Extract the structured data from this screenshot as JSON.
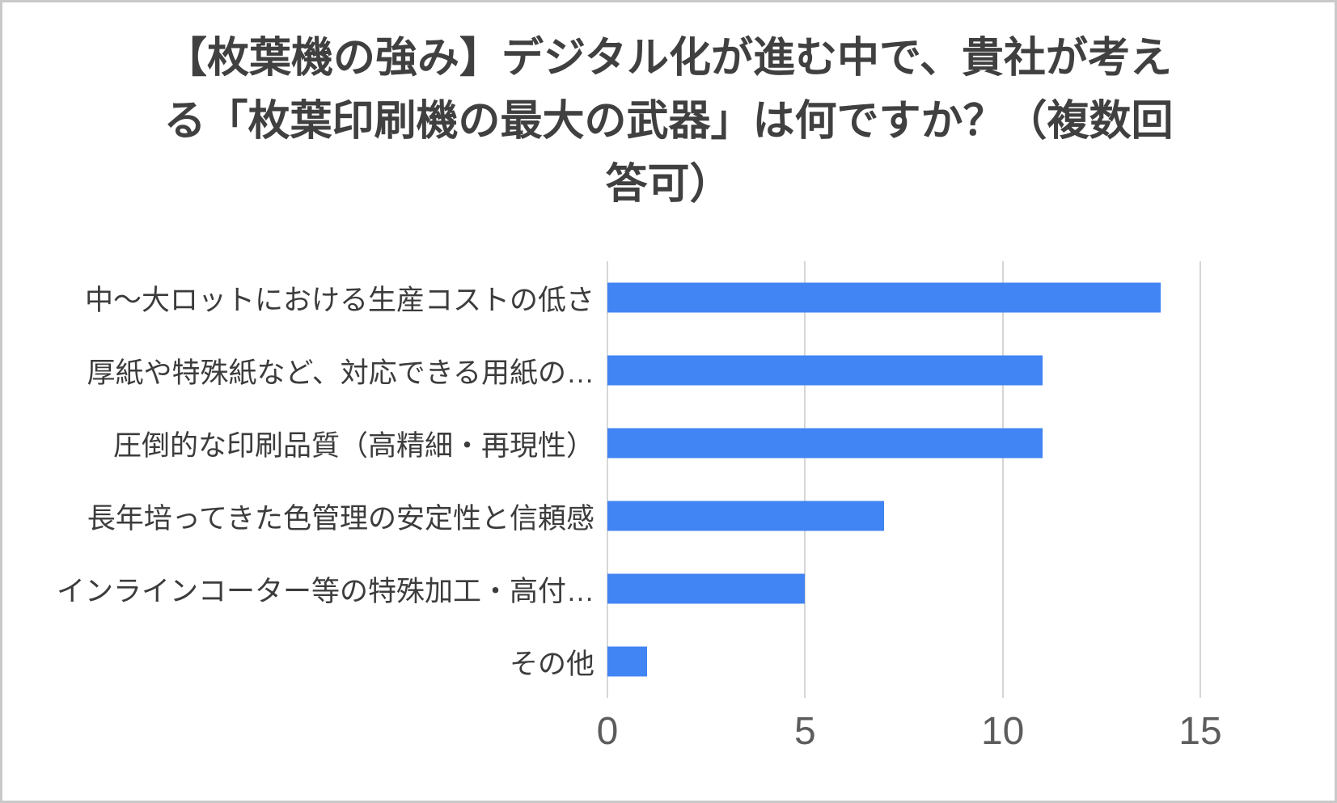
{
  "frame": {
    "background": "#ffffff",
    "border_color": "#c9c9c9"
  },
  "chart_data": {
    "type": "bar",
    "orientation": "horizontal",
    "title": "【枚葉機の強み】デジタル化が進む中で、貴社が考える「枚葉印刷機の最大の武器」は何ですか？（複数回答可）",
    "categories": [
      "中～大ロットにおける生産コストの低さ",
      "厚紙や特殊紙など、対応できる用紙の…",
      "圧倒的な印刷品質（高精細・再現性）",
      "長年培ってきた色管理の安定性と信頼感",
      "インラインコーター等の特殊加工・高付…",
      "その他"
    ],
    "values": [
      14,
      11,
      11,
      7,
      5,
      1
    ],
    "xlabel": "",
    "ylabel": "",
    "xlim": [
      0,
      15
    ],
    "x_ticks": [
      0,
      5,
      10,
      15
    ],
    "grid": true,
    "legend": "none",
    "bar_color": "#4184F3",
    "gridline_color": "#d6d6d6",
    "title_color": "#404040",
    "label_color": "#3c3c3c",
    "tick_color": "#5c5c5c"
  }
}
